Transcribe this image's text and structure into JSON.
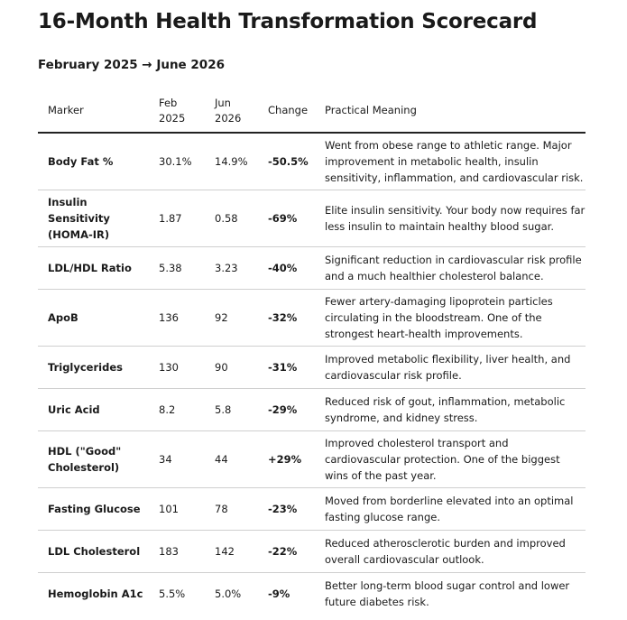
{
  "title": "16-Month Health Transformation Scorecard",
  "subtitle": "February 2025 → June 2026",
  "table": {
    "headers": {
      "marker": "Marker",
      "feb": "Feb\n2025",
      "jun": "Jun\n2026",
      "change": "Change",
      "meaning": "Practical Meaning"
    },
    "rows": [
      {
        "marker": "Body Fat %",
        "feb": "30.1%",
        "jun": "14.9%",
        "change": "-50.5%",
        "meaning": "Went from obese range to athletic range. Major improvement in metabolic health, insulin sensitivity, inflammation, and cardiovascular risk."
      },
      {
        "marker": "Insulin Sensitivity (HOMA-IR)",
        "feb": "1.87",
        "jun": "0.58",
        "change": "-69%",
        "meaning": "Elite insulin sensitivity. Your body now requires far less insulin to maintain healthy blood sugar."
      },
      {
        "marker": "LDL/HDL Ratio",
        "feb": "5.38",
        "jun": "3.23",
        "change": "-40%",
        "meaning": "Significant reduction in cardiovascular risk profile and a much healthier cholesterol balance."
      },
      {
        "marker": "ApoB",
        "feb": "136",
        "jun": "92",
        "change": "-32%",
        "meaning": "Fewer artery-damaging lipoprotein particles circulating in the bloodstream. One of the strongest heart-health improvements."
      },
      {
        "marker": "Triglycerides",
        "feb": "130",
        "jun": "90",
        "change": "-31%",
        "meaning": "Improved metabolic flexibility, liver health, and cardiovascular risk profile."
      },
      {
        "marker": "Uric Acid",
        "feb": "8.2",
        "jun": "5.8",
        "change": "-29%",
        "meaning": "Reduced risk of gout, inflammation, metabolic syndrome, and kidney stress."
      },
      {
        "marker": "HDL (\"Good\" Cholesterol)",
        "feb": "34",
        "jun": "44",
        "change": "+29%",
        "meaning": "Improved cholesterol transport and cardiovascular protection. One of the biggest wins of the past year."
      },
      {
        "marker": "Fasting Glucose",
        "feb": "101",
        "jun": "78",
        "change": "-23%",
        "meaning": "Moved from borderline elevated into an optimal fasting glucose range."
      },
      {
        "marker": "LDL Cholesterol",
        "feb": "183",
        "jun": "142",
        "change": "-22%",
        "meaning": "Reduced atherosclerotic burden and improved overall cardiovascular outlook."
      },
      {
        "marker": "Hemoglobin A1c",
        "feb": "5.5%",
        "jun": "5.0%",
        "change": "-9%",
        "meaning": "Better long-term blood sugar control and lower future diabetes risk."
      }
    ]
  }
}
